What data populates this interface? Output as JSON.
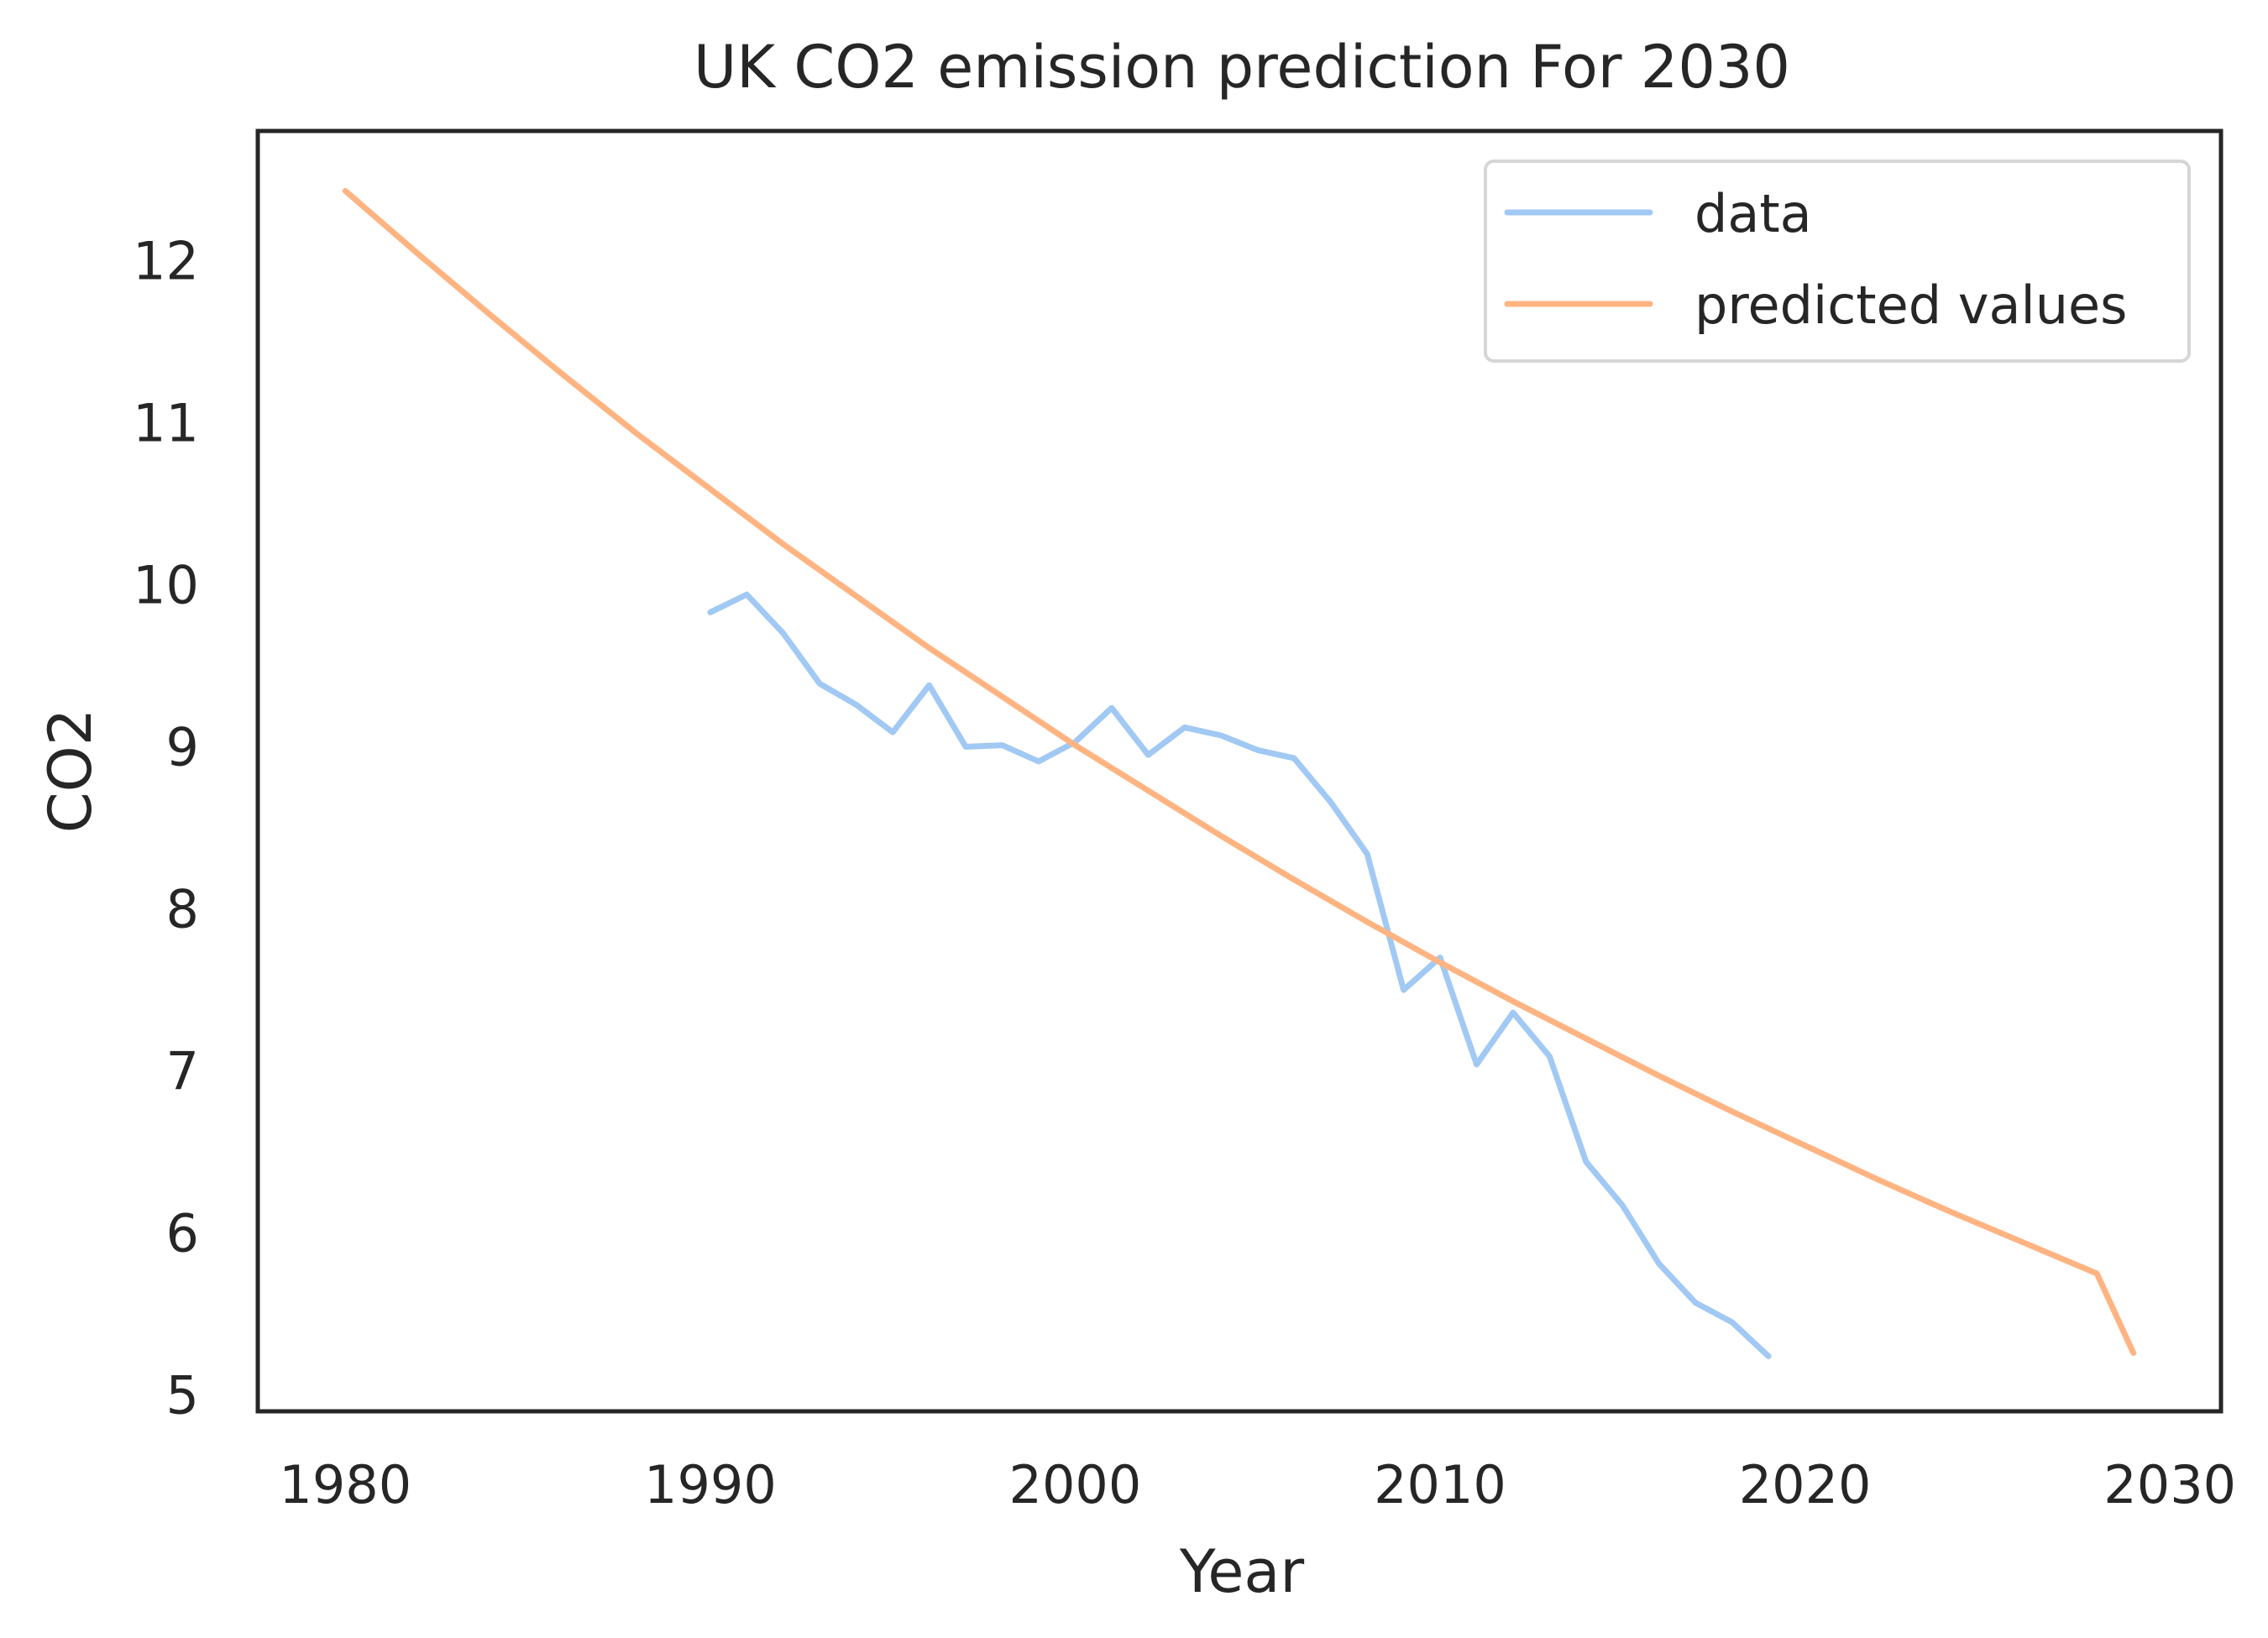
{
  "chart_data": {
    "type": "line",
    "title": "UK CO2 emission prediction For 2030",
    "xlabel": "Year",
    "ylabel": "CO2",
    "xlim": [
      1977.6,
      2031.4
    ],
    "ylim": [
      4.9,
      12.8
    ],
    "xticks": [
      1980,
      1990,
      2000,
      2010,
      2020,
      2030
    ],
    "yticks": [
      5,
      6,
      7,
      8,
      9,
      10,
      11,
      12
    ],
    "grid": false,
    "legend_position": "top-right",
    "series": [
      {
        "name": "data",
        "color": "#a1c9f4",
        "x": [
          1990,
          1991,
          1992,
          1993,
          1994,
          1995,
          1996,
          1997,
          1998,
          1999,
          2000,
          2001,
          2002,
          2003,
          2004,
          2005,
          2006,
          2007,
          2008,
          2009,
          2010,
          2011,
          2012,
          2013,
          2014,
          2015,
          2016,
          2017,
          2018,
          2019
        ],
        "y": [
          9.83,
          9.94,
          9.7,
          9.39,
          9.26,
          9.09,
          9.38,
          9.0,
          9.01,
          8.91,
          9.03,
          9.24,
          8.95,
          9.12,
          9.07,
          8.98,
          8.93,
          8.66,
          8.34,
          7.5,
          7.7,
          7.04,
          7.36,
          7.09,
          6.44,
          6.17,
          5.81,
          5.57,
          5.45,
          5.24
        ]
      },
      {
        "name": "predicted values",
        "color": "#ffb482",
        "x": [
          1980,
          1982,
          1984,
          1986,
          1988,
          1990,
          1992,
          1994,
          1996,
          1998,
          2000,
          2002,
          2004,
          2006,
          2008,
          2010,
          2012,
          2014,
          2016,
          2018,
          2020,
          2022,
          2024,
          2026,
          2028,
          2029
        ],
        "y": [
          12.43,
          12.04,
          11.66,
          11.29,
          10.93,
          10.59,
          10.25,
          9.93,
          9.61,
          9.31,
          9.01,
          8.73,
          8.45,
          8.18,
          7.92,
          7.67,
          7.43,
          7.2,
          6.97,
          6.75,
          6.54,
          6.33,
          6.13,
          5.94,
          5.75,
          5.26
        ]
      }
    ]
  }
}
